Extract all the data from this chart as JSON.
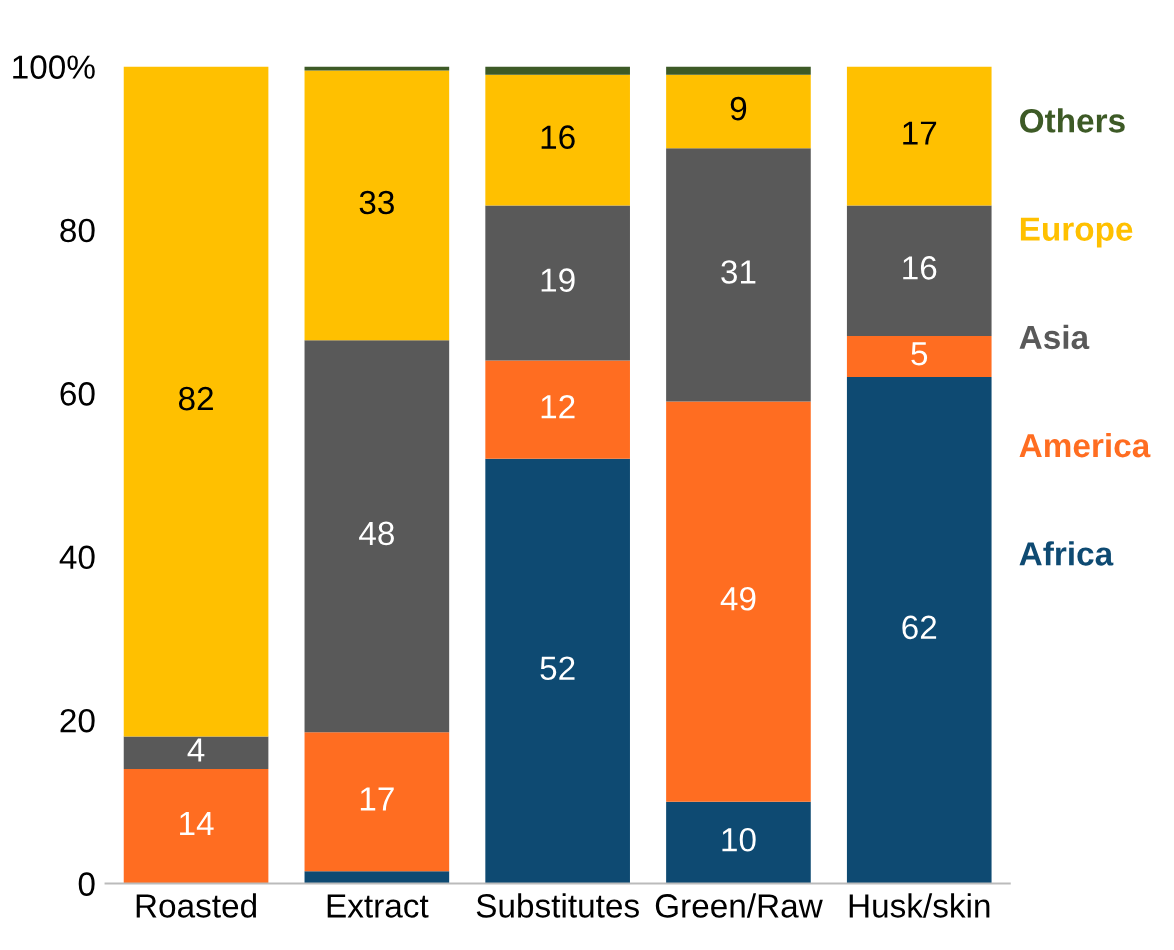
{
  "chart_data": {
    "type": "bar",
    "stacked": true,
    "categories": [
      "Roasted",
      "Extract",
      "Substitutes",
      "Green/Raw",
      "Husk/skin"
    ],
    "series": [
      {
        "name": "Africa",
        "color": "#0e4a72",
        "values": [
          0,
          1.5,
          52,
          10,
          62
        ],
        "value_labels": [
          null,
          null,
          "52",
          "10",
          "62"
        ]
      },
      {
        "name": "America",
        "color": "#ff6d21",
        "values": [
          14,
          17,
          12,
          49,
          5
        ],
        "value_labels": [
          "14",
          "17",
          "12",
          "49",
          "5"
        ]
      },
      {
        "name": "Asia",
        "color": "#595959",
        "values": [
          4,
          48,
          19,
          31,
          16
        ],
        "value_labels": [
          "4",
          "48",
          "19",
          "31",
          "16"
        ]
      },
      {
        "name": "Europe",
        "color": "#ffc000",
        "values": [
          82,
          33,
          16,
          9,
          17
        ],
        "value_labels": [
          "82",
          "33",
          "16",
          "9",
          "17"
        ]
      },
      {
        "name": "Others",
        "color": "#3d5a26",
        "values": [
          0,
          0.5,
          1,
          1,
          0
        ],
        "value_labels": [
          null,
          null,
          null,
          null,
          null
        ]
      }
    ],
    "ylim": [
      0,
      100
    ],
    "yticks": [
      0,
      20,
      40,
      60,
      80,
      {
        "value": 100,
        "label": "100%"
      }
    ],
    "grid": false,
    "legend": "right"
  }
}
